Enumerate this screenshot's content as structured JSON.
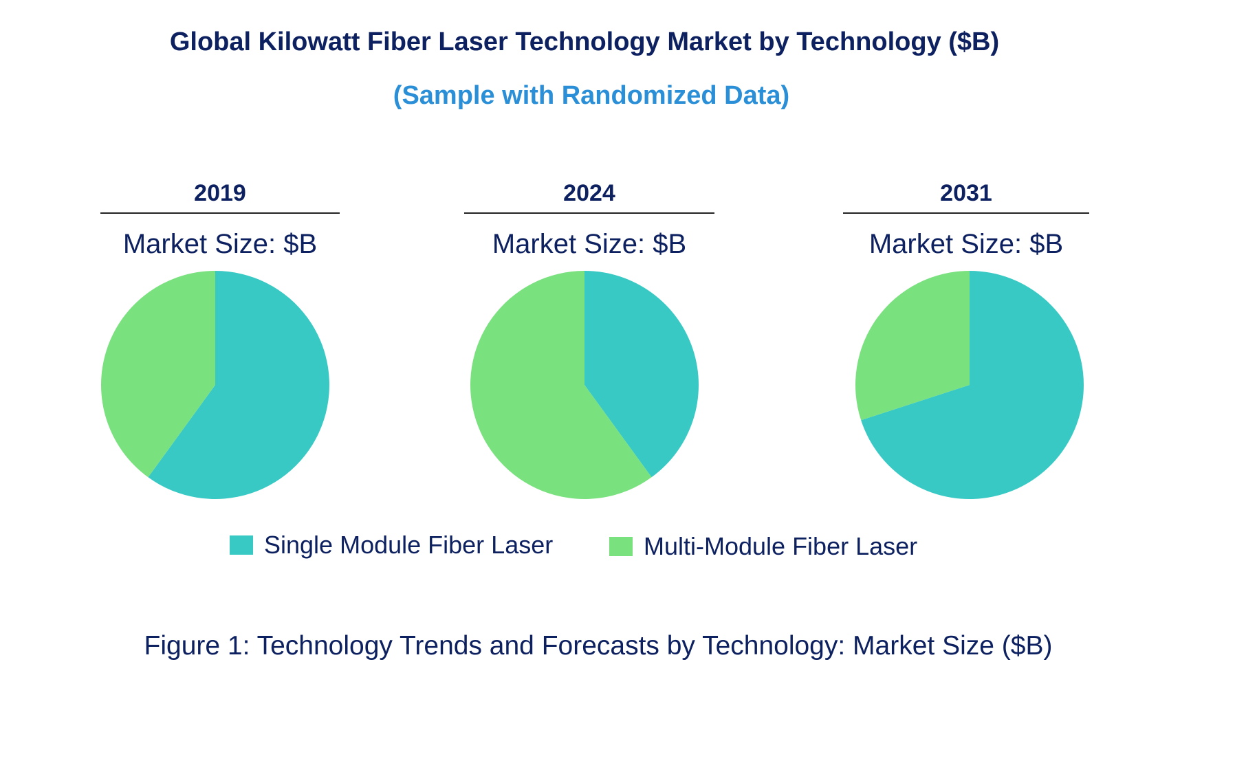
{
  "chart_data": {
    "type": "pie",
    "title": "Global Kilowatt Fiber Laser Technology Market by Technology ($B)",
    "subtitle": "(Sample with Randomized Data)",
    "legend_position": "bottom",
    "series_names": [
      "Single Module Fiber Laser",
      "Multi-Module Fiber Laser"
    ],
    "colors": [
      "#38c9c4",
      "#7ae17f"
    ],
    "charts": [
      {
        "year": "2019",
        "size_label": "Market Size: $B",
        "values": [
          60,
          40
        ]
      },
      {
        "year": "2024",
        "size_label": "Market Size: $B",
        "values": [
          40,
          60
        ]
      },
      {
        "year": "2031",
        "size_label": "Market Size: $B",
        "values": [
          70,
          30
        ]
      }
    ],
    "caption": "Figure 1: Technology Trends and Forecasts by Technology: Market Size ($B)"
  }
}
